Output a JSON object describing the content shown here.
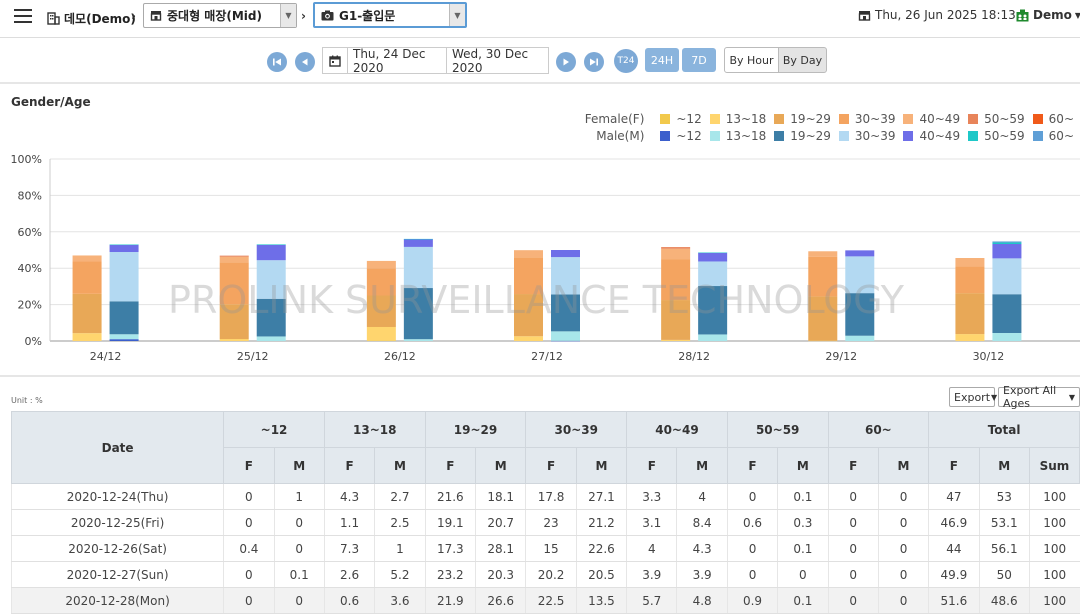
{
  "header": {
    "site_name": "데모(Demo)",
    "store_select": "중대형 매장(Mid)",
    "camera_select": "G1-출입문",
    "datetime": "Thu, 26 Jun 2025 18:13",
    "user": "Demo"
  },
  "date_nav": {
    "start_date": "Thu, 24 Dec 2020",
    "end_date": "Wed, 30 Dec 2020",
    "t24": "T24",
    "btn_24h": "24H",
    "btn_7d": "7D",
    "by_hour": "By Hour",
    "by_day": "By Day"
  },
  "chart_section": {
    "title": "Gender/Age",
    "female_label": "Female(F)",
    "male_label": "Male(M)",
    "watermark": "PROLINK SURVEILLANCE TECHNOLOGY"
  },
  "chart_data": {
    "type": "bar",
    "stacked": true,
    "categories": [
      "24/12",
      "25/12",
      "26/12",
      "27/12",
      "28/12",
      "29/12",
      "30/12"
    ],
    "ylim": [
      0,
      100
    ],
    "yticks": [
      "0%",
      "20%",
      "40%",
      "60%",
      "80%",
      "100%"
    ],
    "age_groups": [
      "~12",
      "13~18",
      "19~29",
      "30~39",
      "40~49",
      "50~59",
      "60~"
    ],
    "female_colors": [
      "#f2c94c",
      "#ffd56e",
      "#e8a857",
      "#f4a460",
      "#f7b27a",
      "#e8845a",
      "#f05a1a"
    ],
    "male_colors": [
      "#3b5fcc",
      "#a8e6ea",
      "#3d7ea6",
      "#b3d9f2",
      "#6e6ee8",
      "#1ec8c8",
      "#5f9fd6"
    ],
    "female": [
      [
        0,
        4.3,
        21.6,
        17.8,
        3.3,
        0,
        0
      ],
      [
        0,
        1.1,
        19.1,
        23,
        3.1,
        0.6,
        0
      ],
      [
        0.4,
        7.3,
        17.3,
        15,
        4,
        0,
        0
      ],
      [
        0,
        2.6,
        23.2,
        20.2,
        3.9,
        0,
        0
      ],
      [
        0,
        0.6,
        21.9,
        22.5,
        5.7,
        0.9,
        0
      ],
      [
        0,
        0.2,
        24.3,
        21.7,
        3.1,
        0,
        0
      ],
      [
        0,
        3.8,
        22.5,
        14.6,
        4.7,
        0,
        0
      ]
    ],
    "male": [
      [
        1,
        2.7,
        18.1,
        27.1,
        4,
        0.1,
        0
      ],
      [
        0,
        2.5,
        20.7,
        21.2,
        8.4,
        0.3,
        0
      ],
      [
        0,
        1,
        28.1,
        22.6,
        4.3,
        0.1,
        0
      ],
      [
        0.1,
        5.2,
        20.3,
        20.5,
        3.9,
        0,
        0
      ],
      [
        0,
        3.6,
        26.6,
        13.5,
        4.8,
        0.1,
        0
      ],
      [
        0,
        2.9,
        23.4,
        20.2,
        3.3,
        0,
        0
      ],
      [
        0,
        4.4,
        21.3,
        19.7,
        7.9,
        0.8,
        0.6
      ]
    ]
  },
  "table": {
    "unit": "Unit : %",
    "export": "Export",
    "export_all": "Export All Ages",
    "date_header": "Date",
    "age_headers": [
      "~12",
      "13~18",
      "19~29",
      "30~39",
      "40~49",
      "50~59",
      "60~",
      "Total"
    ],
    "f": "F",
    "m": "M",
    "sum": "Sum",
    "rows": [
      [
        "2020-12-24(Thu)",
        "0",
        "1",
        "4.3",
        "2.7",
        "21.6",
        "18.1",
        "17.8",
        "27.1",
        "3.3",
        "4",
        "0",
        "0.1",
        "0",
        "0",
        "47",
        "53",
        "100"
      ],
      [
        "2020-12-25(Fri)",
        "0",
        "0",
        "1.1",
        "2.5",
        "19.1",
        "20.7",
        "23",
        "21.2",
        "3.1",
        "8.4",
        "0.6",
        "0.3",
        "0",
        "0",
        "46.9",
        "53.1",
        "100"
      ],
      [
        "2020-12-26(Sat)",
        "0.4",
        "0",
        "7.3",
        "1",
        "17.3",
        "28.1",
        "15",
        "22.6",
        "4",
        "4.3",
        "0",
        "0.1",
        "0",
        "0",
        "44",
        "56.1",
        "100"
      ],
      [
        "2020-12-27(Sun)",
        "0",
        "0.1",
        "2.6",
        "5.2",
        "23.2",
        "20.3",
        "20.2",
        "20.5",
        "3.9",
        "3.9",
        "0",
        "0",
        "0",
        "0",
        "49.9",
        "50",
        "100"
      ],
      [
        "2020-12-28(Mon)",
        "0",
        "0",
        "0.6",
        "3.6",
        "21.9",
        "26.6",
        "22.5",
        "13.5",
        "5.7",
        "4.8",
        "0.9",
        "0.1",
        "0",
        "0",
        "51.6",
        "48.6",
        "100"
      ]
    ]
  }
}
